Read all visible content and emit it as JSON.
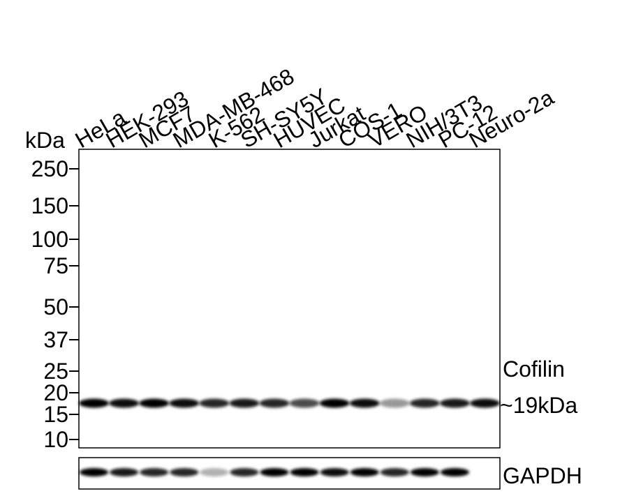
{
  "kda_label": "kDa",
  "lanes": [
    "HeLa",
    "HEK-293",
    "MCF7",
    "MDA-MB-468",
    "K-562",
    "SH-SY5Y",
    "HUVEC",
    "Jurkat",
    "COS-1",
    "VERO",
    "NIH/3T3",
    "PC-12",
    "Neuro-2a"
  ],
  "markers": [
    "250",
    "150",
    "100",
    "75",
    "50",
    "37",
    "25",
    "20",
    "15",
    "10"
  ],
  "main_blot": {
    "target": "Cofilin",
    "size": "~19kDa"
  },
  "loading_control": {
    "target": "GAPDH"
  }
}
